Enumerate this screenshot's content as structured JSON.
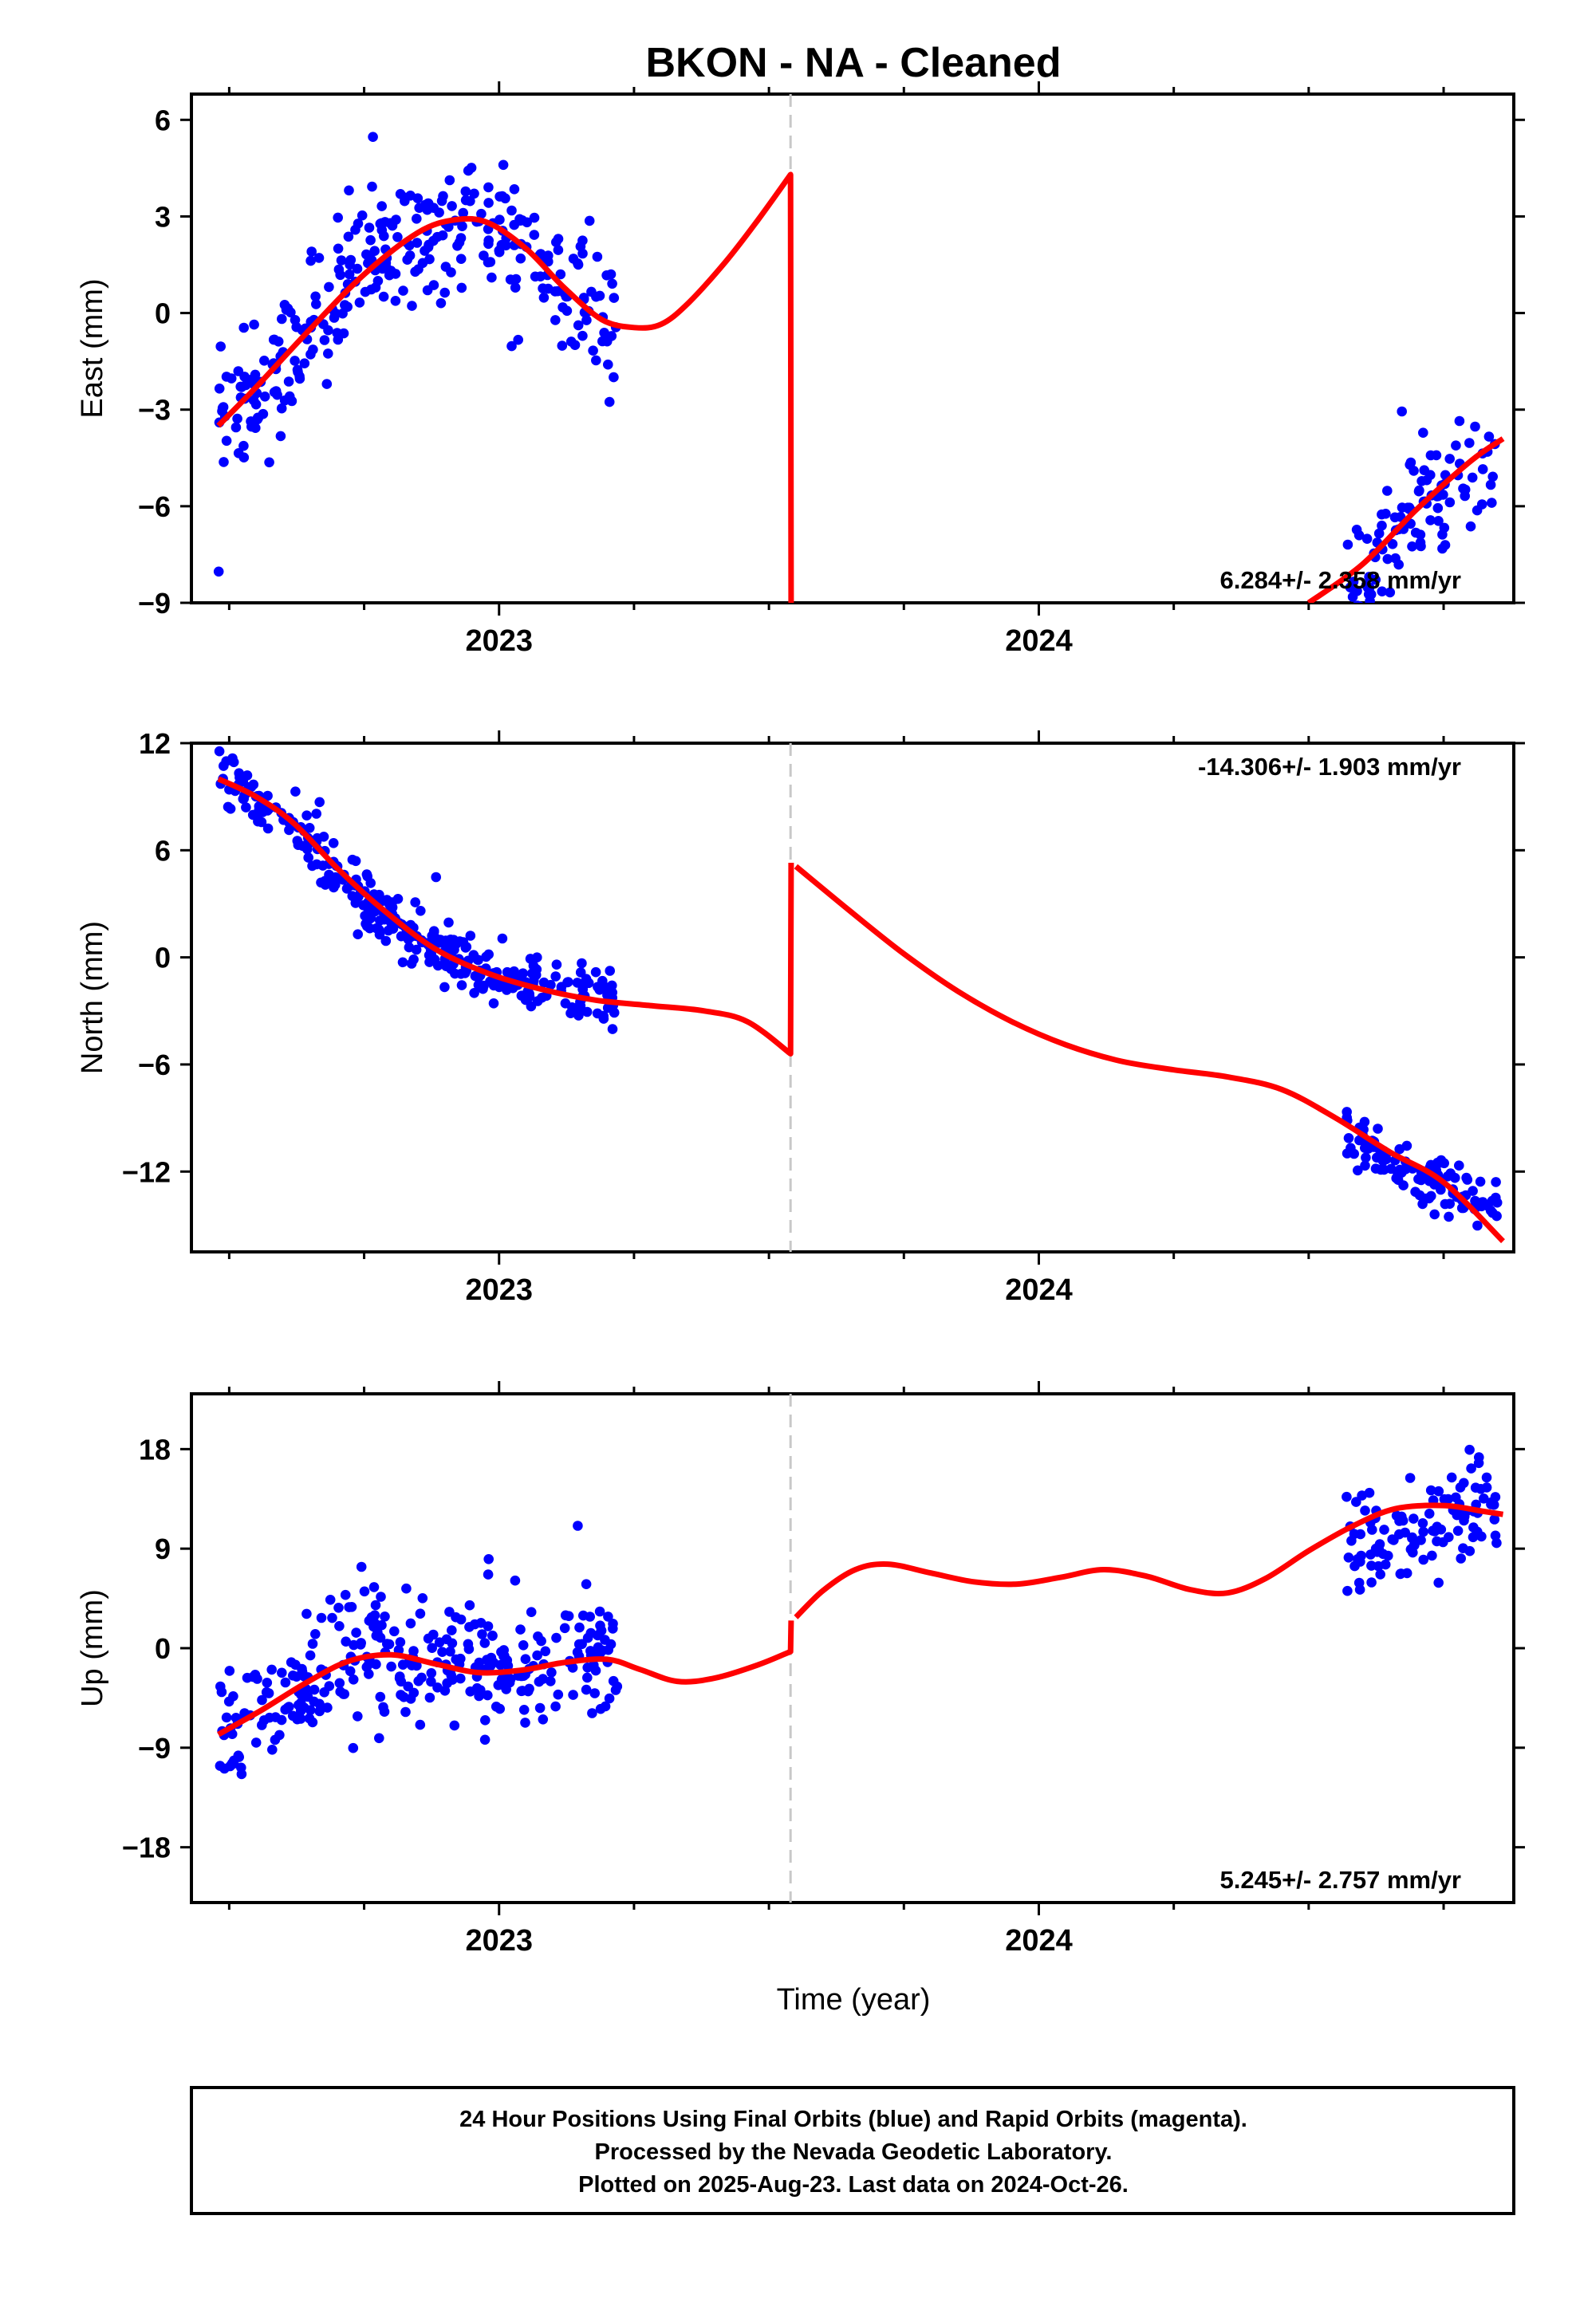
{
  "title": "BKON  - NA - Cleaned",
  "xlabel": "Time (year)",
  "footer": {
    "line1": "24 Hour Positions Using Final Orbits (blue) and Rapid Orbits (magenta).",
    "line2": "Processed by the Nevada Geodetic Laboratory.",
    "line3": "Plotted on 2025-Aug-23. Last data on 2024-Oct-26."
  },
  "colors": {
    "points": "#0000ff",
    "fit": "#ff0000",
    "break_line": "#c8c8c8",
    "axes": "#000000"
  },
  "chart_data": [
    {
      "type": "scatter",
      "ylabel": "East (mm)",
      "velocity": "6.284+/- 2.358 mm/yr",
      "xlim": [
        2022.43,
        2024.88
      ],
      "ylim": [
        -9,
        6.8
      ],
      "yticks": [
        -9,
        -6,
        -3,
        0,
        3,
        6
      ],
      "xticks": [
        2023,
        2024
      ],
      "grid": false,
      "equipment_break": 2023.54,
      "series": [
        {
          "kind": "points",
          "segments": [
            {
              "x_start": 2022.48,
              "x_end": 2023.22,
              "trend": [
                [
                  2022.48,
                  -3.4
                ],
                [
                  2022.62,
                  -1.2
                ],
                [
                  2022.76,
                  1.5
                ],
                [
                  2022.92,
                  3.0
                ],
                [
                  2023.05,
                  2.0
                ],
                [
                  2023.15,
                  0.3
                ],
                [
                  2023.22,
                  -0.3
                ]
              ],
              "noise": 1.6,
              "count": 320,
              "seed": 11
            },
            {
              "x_start": 2024.57,
              "x_end": 2024.85,
              "trend": [
                [
                  2024.57,
                  -8.5
                ],
                [
                  2024.7,
                  -6.0
                ],
                [
                  2024.85,
                  -4.2
                ]
              ],
              "noise": 1.4,
              "count": 110,
              "seed": 12
            }
          ]
        },
        {
          "kind": "fit",
          "points": [
            [
              2022.48,
              -3.5
            ],
            [
              2022.55,
              -2.3
            ],
            [
              2022.65,
              -0.5
            ],
            [
              2022.75,
              1.2
            ],
            [
              2022.85,
              2.5
            ],
            [
              2022.92,
              2.9
            ],
            [
              2022.98,
              2.8
            ],
            [
              2023.05,
              2.0
            ],
            [
              2023.12,
              0.8
            ],
            [
              2023.19,
              -0.2
            ],
            [
              2023.25,
              -0.45
            ],
            [
              2023.3,
              -0.35
            ],
            [
              2023.35,
              0.3
            ],
            [
              2023.42,
              1.6
            ],
            [
              2023.48,
              2.9
            ],
            [
              2023.54,
              4.3
            ],
            [
              2023.541,
              -9.0
            ]
          ],
          "points_b": [
            [
              2024.5,
              -9.0
            ],
            [
              2024.6,
              -7.8
            ],
            [
              2024.7,
              -6.1
            ],
            [
              2024.8,
              -4.6
            ],
            [
              2024.86,
              -3.9
            ]
          ]
        }
      ]
    },
    {
      "type": "scatter",
      "ylabel": "North (mm)",
      "velocity": "-14.306+/- 1.903 mm/yr",
      "xlim": [
        2022.43,
        2024.88
      ],
      "ylim": [
        -16.5,
        12
      ],
      "yticks": [
        -12,
        -6,
        0,
        6,
        12
      ],
      "xticks": [
        2023,
        2024
      ],
      "grid": false,
      "equipment_break": 2023.54,
      "series": [
        {
          "kind": "points",
          "segments": [
            {
              "x_start": 2022.48,
              "x_end": 2023.22,
              "trend": [
                [
                  2022.48,
                  10.0
                ],
                [
                  2022.6,
                  8.0
                ],
                [
                  2022.72,
                  4.0
                ],
                [
                  2022.85,
                  1.0
                ],
                [
                  2023.0,
                  -1.0
                ],
                [
                  2023.22,
                  -2.5
                ]
              ],
              "noise": 1.3,
              "count": 330,
              "seed": 21
            },
            {
              "x_start": 2024.57,
              "x_end": 2024.85,
              "trend": [
                [
                  2024.57,
                  -9.8
                ],
                [
                  2024.7,
                  -12.3
                ],
                [
                  2024.85,
                  -14.0
                ]
              ],
              "noise": 1.1,
              "count": 115,
              "seed": 22
            }
          ]
        },
        {
          "kind": "fit",
          "points": [
            [
              2022.48,
              10.0
            ],
            [
              2022.55,
              9.0
            ],
            [
              2022.62,
              7.5
            ],
            [
              2022.7,
              5.0
            ],
            [
              2022.78,
              2.8
            ],
            [
              2022.88,
              0.5
            ],
            [
              2022.98,
              -0.9
            ],
            [
              2023.08,
              -1.8
            ],
            [
              2023.18,
              -2.4
            ],
            [
              2023.28,
              -2.7
            ],
            [
              2023.38,
              -3.0
            ],
            [
              2023.46,
              -3.6
            ],
            [
              2023.54,
              -5.4
            ],
            [
              2023.541,
              5.3
            ]
          ],
          "points_b": [
            [
              2023.55,
              5.1
            ],
            [
              2023.65,
              2.6
            ],
            [
              2023.75,
              0.2
            ],
            [
              2023.85,
              -1.9
            ],
            [
              2023.95,
              -3.6
            ],
            [
              2024.05,
              -4.9
            ],
            [
              2024.15,
              -5.8
            ],
            [
              2024.25,
              -6.3
            ],
            [
              2024.35,
              -6.7
            ],
            [
              2024.45,
              -7.4
            ],
            [
              2024.55,
              -9.0
            ],
            [
              2024.65,
              -10.9
            ],
            [
              2024.75,
              -12.6
            ],
            [
              2024.86,
              -15.9
            ]
          ]
        }
      ]
    },
    {
      "type": "scatter",
      "ylabel": "Up (mm)",
      "velocity": "5.245+/- 2.757 mm/yr",
      "xlim": [
        2022.43,
        2024.88
      ],
      "ylim": [
        -23,
        23
      ],
      "yticks": [
        -18,
        -9,
        0,
        9,
        18
      ],
      "xticks": [
        2023,
        2024
      ],
      "grid": false,
      "equipment_break": 2023.54,
      "series": [
        {
          "kind": "points",
          "segments": [
            {
              "x_start": 2022.48,
              "x_end": 2023.22,
              "trend": [
                [
                  2022.48,
                  -8.0
                ],
                [
                  2022.6,
                  -4.0
                ],
                [
                  2022.72,
                  -1.0
                ],
                [
                  2022.85,
                  -1.0
                ],
                [
                  2023.0,
                  -2.0
                ],
                [
                  2023.22,
                  -1.0
                ]
              ],
              "noise": 4.8,
              "count": 320,
              "seed": 31
            },
            {
              "x_start": 2024.57,
              "x_end": 2024.85,
              "trend": [
                [
                  2024.57,
                  8.0
                ],
                [
                  2024.7,
                  11.0
                ],
                [
                  2024.85,
                  13.0
                ]
              ],
              "noise": 3.8,
              "count": 110,
              "seed": 32
            }
          ]
        },
        {
          "kind": "fit",
          "points": [
            [
              2022.48,
              -7.8
            ],
            [
              2022.56,
              -5.6
            ],
            [
              2022.64,
              -3.2
            ],
            [
              2022.72,
              -1.2
            ],
            [
              2022.8,
              -0.6
            ],
            [
              2022.88,
              -1.4
            ],
            [
              2022.96,
              -2.2
            ],
            [
              2023.04,
              -2.0
            ],
            [
              2023.12,
              -1.3
            ],
            [
              2023.2,
              -1.0
            ],
            [
              2023.26,
              -1.9
            ],
            [
              2023.33,
              -3.0
            ],
            [
              2023.4,
              -2.7
            ],
            [
              2023.48,
              -1.5
            ],
            [
              2023.54,
              -0.3
            ],
            [
              2023.541,
              2.5
            ]
          ],
          "points_b": [
            [
              2023.55,
              2.8
            ],
            [
              2023.6,
              5.2
            ],
            [
              2023.66,
              7.1
            ],
            [
              2023.72,
              7.6
            ],
            [
              2023.8,
              6.8
            ],
            [
              2023.88,
              6.0
            ],
            [
              2023.96,
              5.8
            ],
            [
              2024.04,
              6.4
            ],
            [
              2024.12,
              7.1
            ],
            [
              2024.2,
              6.5
            ],
            [
              2024.28,
              5.3
            ],
            [
              2024.35,
              5.0
            ],
            [
              2024.42,
              6.3
            ],
            [
              2024.5,
              8.8
            ],
            [
              2024.58,
              11.0
            ],
            [
              2024.66,
              12.6
            ],
            [
              2024.75,
              12.9
            ],
            [
              2024.82,
              12.4
            ],
            [
              2024.86,
              12.1
            ]
          ]
        }
      ]
    }
  ]
}
